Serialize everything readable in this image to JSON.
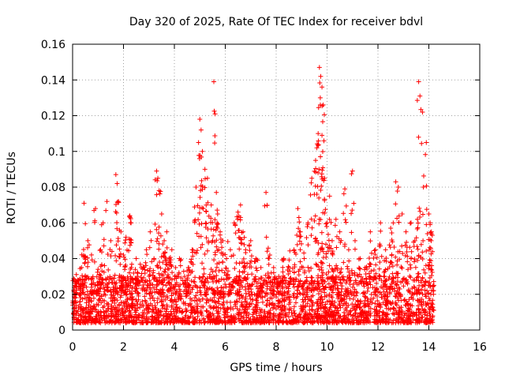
{
  "chart_data": {
    "type": "scatter",
    "title": "Day 320 of 2025, Rate Of TEC Index for receiver bdvl",
    "xlabel": "GPS time / hours",
    "ylabel": "ROTI / TECUs",
    "xlim": [
      0,
      16
    ],
    "ylim": [
      0,
      0.16
    ],
    "xticks": [
      0,
      2,
      4,
      6,
      8,
      10,
      12,
      14,
      16
    ],
    "yticks": [
      0,
      0.02,
      0.04,
      0.06,
      0.08,
      0.1,
      0.12,
      0.14,
      0.16
    ],
    "xtick_labels": [
      "0",
      "2",
      "4",
      "6",
      "8",
      "10",
      "12",
      "14",
      "16"
    ],
    "ytick_labels": [
      "0",
      "0.02",
      "0.04",
      "0.06",
      "0.08",
      "0.1",
      "0.12",
      "0.14",
      "0.16"
    ],
    "grid": true,
    "marker": "+",
    "color": "#ff0000",
    "series": [
      {
        "name": "ROTI",
        "x": [
          0.05,
          0.2,
          0.35,
          0.45,
          0.5,
          0.6,
          0.75,
          0.9,
          1.0,
          1.1,
          1.2,
          1.35,
          1.5,
          1.7,
          1.75,
          1.8,
          1.9,
          2.0,
          2.1,
          2.25,
          2.3,
          2.5,
          2.7,
          2.9,
          3.05,
          3.2,
          3.3,
          3.35,
          3.4,
          3.5,
          3.6,
          3.7,
          3.8,
          3.9,
          4.05,
          4.2,
          4.4,
          4.55,
          4.7,
          4.85,
          4.95,
          5.0,
          5.05,
          5.1,
          5.2,
          5.3,
          5.45,
          5.55,
          5.6,
          5.65,
          5.7,
          5.8,
          5.9,
          6.05,
          6.2,
          6.35,
          6.5,
          6.6,
          6.7,
          6.8,
          7.0,
          7.2,
          7.4,
          7.6,
          7.75,
          7.9,
          8.1,
          8.3,
          8.5,
          8.7,
          8.85,
          8.95,
          9.1,
          9.25,
          9.4,
          9.55,
          9.6,
          9.65,
          9.7,
          9.75,
          9.8,
          9.85,
          9.9,
          10.0,
          10.1,
          10.2,
          10.35,
          10.5,
          10.7,
          10.85,
          11.0,
          11.1,
          11.3,
          11.5,
          11.7,
          11.9,
          12.1,
          12.3,
          12.5,
          12.6,
          12.7,
          12.8,
          12.95,
          13.1,
          13.3,
          13.45,
          13.55,
          13.6,
          13.65,
          13.75,
          13.9,
          14.0,
          14.05,
          14.1
        ],
        "y": [
          0.012,
          0.028,
          0.035,
          0.071,
          0.041,
          0.05,
          0.022,
          0.068,
          0.034,
          0.045,
          0.06,
          0.072,
          0.05,
          0.087,
          0.082,
          0.072,
          0.055,
          0.042,
          0.052,
          0.064,
          0.06,
          0.04,
          0.035,
          0.045,
          0.055,
          0.04,
          0.089,
          0.085,
          0.078,
          0.065,
          0.05,
          0.055,
          0.04,
          0.045,
          0.035,
          0.04,
          0.03,
          0.035,
          0.045,
          0.08,
          0.105,
          0.118,
          0.112,
          0.1,
          0.09,
          0.085,
          0.07,
          0.139,
          0.121,
          0.077,
          0.065,
          0.055,
          0.05,
          0.04,
          0.045,
          0.06,
          0.066,
          0.07,
          0.055,
          0.045,
          0.05,
          0.04,
          0.035,
          0.077,
          0.042,
          0.035,
          0.03,
          0.04,
          0.035,
          0.045,
          0.068,
          0.055,
          0.04,
          0.06,
          0.085,
          0.095,
          0.102,
          0.11,
          0.147,
          0.142,
          0.136,
          0.126,
          0.085,
          0.06,
          0.075,
          0.05,
          0.062,
          0.055,
          0.079,
          0.045,
          0.089,
          0.05,
          0.04,
          0.035,
          0.055,
          0.045,
          0.06,
          0.045,
          0.057,
          0.06,
          0.083,
          0.08,
          0.065,
          0.055,
          0.06,
          0.05,
          0.062,
          0.139,
          0.131,
          0.122,
          0.105,
          0.065,
          0.06,
          0.055
        ],
        "background_density": "dense noise band of ROTI ~0.004-0.03 across 0-14.2 h, with spikes"
      }
    ]
  }
}
